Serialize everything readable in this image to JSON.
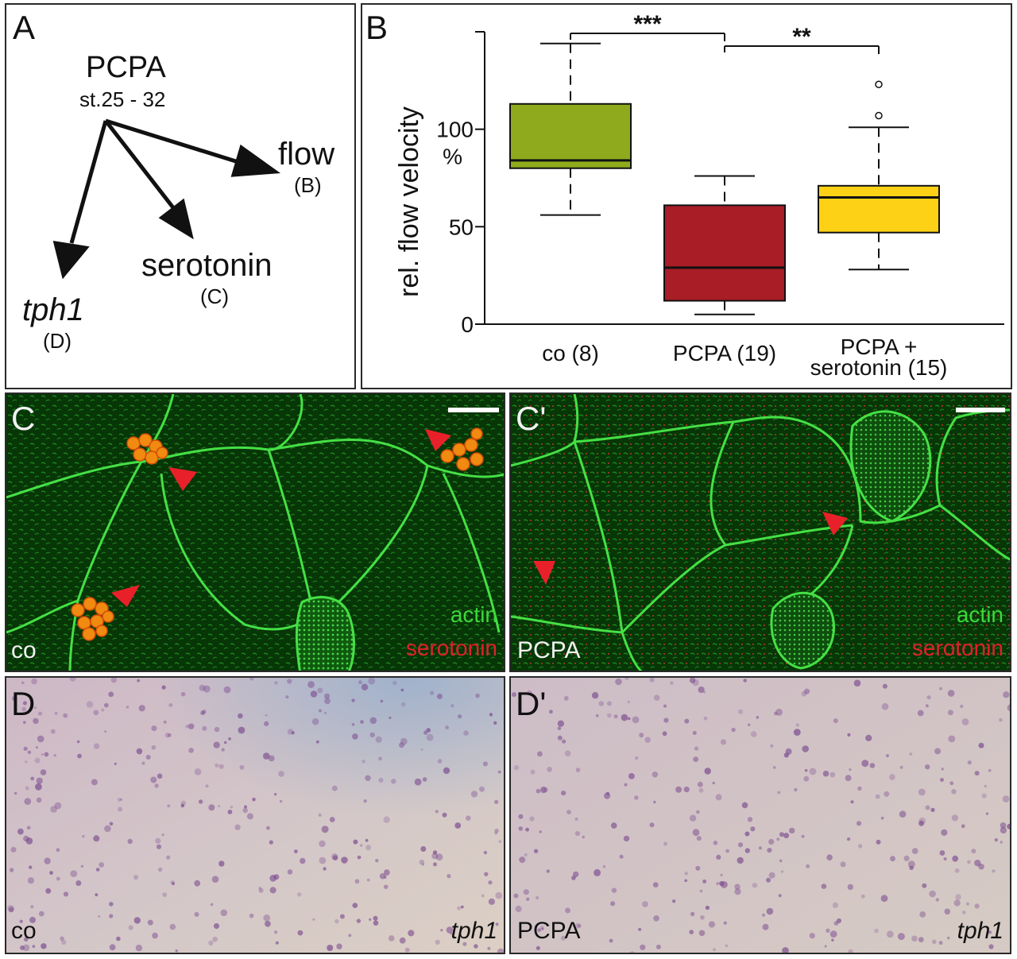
{
  "panels": {
    "A": {
      "label": "A",
      "drug": "PCPA",
      "stage": "st.25 - 32",
      "targets": [
        {
          "name": "flow",
          "ref": "(B)"
        },
        {
          "name": "serotonin",
          "ref": "(C)"
        },
        {
          "name": "tph1",
          "ref": "(D)"
        }
      ]
    },
    "B": {
      "label": "B"
    },
    "C": {
      "label": "C",
      "condition": "co",
      "stain_green": "actin",
      "stain_red": "serotonin"
    },
    "C2": {
      "label": "C'",
      "condition": "PCPA",
      "stain_green": "actin",
      "stain_red": "serotonin"
    },
    "D": {
      "label": "D",
      "condition": "co",
      "probe": "tph1"
    },
    "D2": {
      "label": "D'",
      "condition": "PCPA",
      "probe": "tph1"
    }
  },
  "chart_data": {
    "type": "box",
    "ylabel": "rel. flow velocity",
    "yunit": "%",
    "ylim": [
      0,
      150
    ],
    "yticks": [
      0,
      50,
      100
    ],
    "categories": [
      "co (8)",
      "PCPA (19)",
      "PCPA + serotonin (15)"
    ],
    "category_lines": [
      [
        "co (8)"
      ],
      [
        "PCPA (19)"
      ],
      [
        "PCPA +",
        "serotonin (15)"
      ]
    ],
    "boxes": [
      {
        "whisker_low": 56,
        "q1": 80,
        "median": 84,
        "q3": 113,
        "whisker_high": 144,
        "outliers": [],
        "color": "#8faa1c"
      },
      {
        "whisker_low": 5,
        "q1": 12,
        "median": 29,
        "q3": 61,
        "whisker_high": 76,
        "outliers": [],
        "color": "#a81d26"
      },
      {
        "whisker_low": 28,
        "q1": 47,
        "median": 65,
        "q3": 71,
        "whisker_high": 101,
        "outliers": [
          107,
          123
        ],
        "color": "#fcd116"
      }
    ],
    "significance": [
      {
        "between": [
          0,
          1
        ],
        "label": "***"
      },
      {
        "between": [
          1,
          2
        ],
        "label": "**"
      }
    ]
  },
  "colors": {
    "actin": "#3cd83c",
    "serotonin": "#e0202a",
    "arrowhead": "#e8202a",
    "tph1_dots": "#7a4a8e"
  }
}
